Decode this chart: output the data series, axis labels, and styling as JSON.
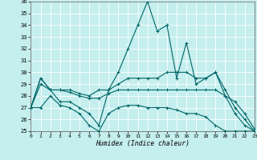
{
  "xlabel": "Humidex (Indice chaleur)",
  "bg_color": "#c5eeee",
  "line_color": "#006666",
  "xlim": [
    0,
    23
  ],
  "ylim": [
    25,
    36
  ],
  "yticks": [
    25,
    26,
    27,
    28,
    29,
    30,
    31,
    32,
    33,
    34,
    35,
    36
  ],
  "xticks": [
    0,
    1,
    2,
    3,
    4,
    5,
    6,
    7,
    8,
    9,
    10,
    11,
    12,
    13,
    14,
    15,
    16,
    17,
    18,
    19,
    20,
    21,
    22,
    23
  ],
  "line1": [
    27.0,
    29.5,
    28.5,
    27.5,
    27.5,
    27.0,
    26.5,
    25.5,
    28.5,
    30.0,
    32.0,
    34.0,
    36.0,
    33.5,
    34.0,
    29.5,
    32.5,
    29.0,
    29.5,
    30.0,
    28.0,
    26.5,
    25.5,
    25.0
  ],
  "line2": [
    27.0,
    29.5,
    28.5,
    28.5,
    28.5,
    28.2,
    28.0,
    28.5,
    28.5,
    29.0,
    29.5,
    29.5,
    29.5,
    29.5,
    30.0,
    30.0,
    30.0,
    29.5,
    29.5,
    30.0,
    28.5,
    27.0,
    26.0,
    25.0
  ],
  "line3": [
    27.0,
    29.0,
    28.5,
    28.5,
    28.3,
    28.0,
    27.8,
    27.8,
    28.2,
    28.5,
    28.5,
    28.5,
    28.5,
    28.5,
    28.5,
    28.5,
    28.5,
    28.5,
    28.5,
    28.5,
    28.0,
    27.5,
    26.5,
    25.2
  ],
  "line4": [
    27.0,
    27.0,
    28.0,
    27.2,
    27.0,
    26.5,
    25.5,
    25.0,
    26.5,
    27.0,
    27.2,
    27.2,
    27.0,
    27.0,
    27.0,
    26.8,
    26.5,
    26.5,
    26.2,
    25.5,
    25.0,
    25.0,
    25.0,
    25.0
  ]
}
